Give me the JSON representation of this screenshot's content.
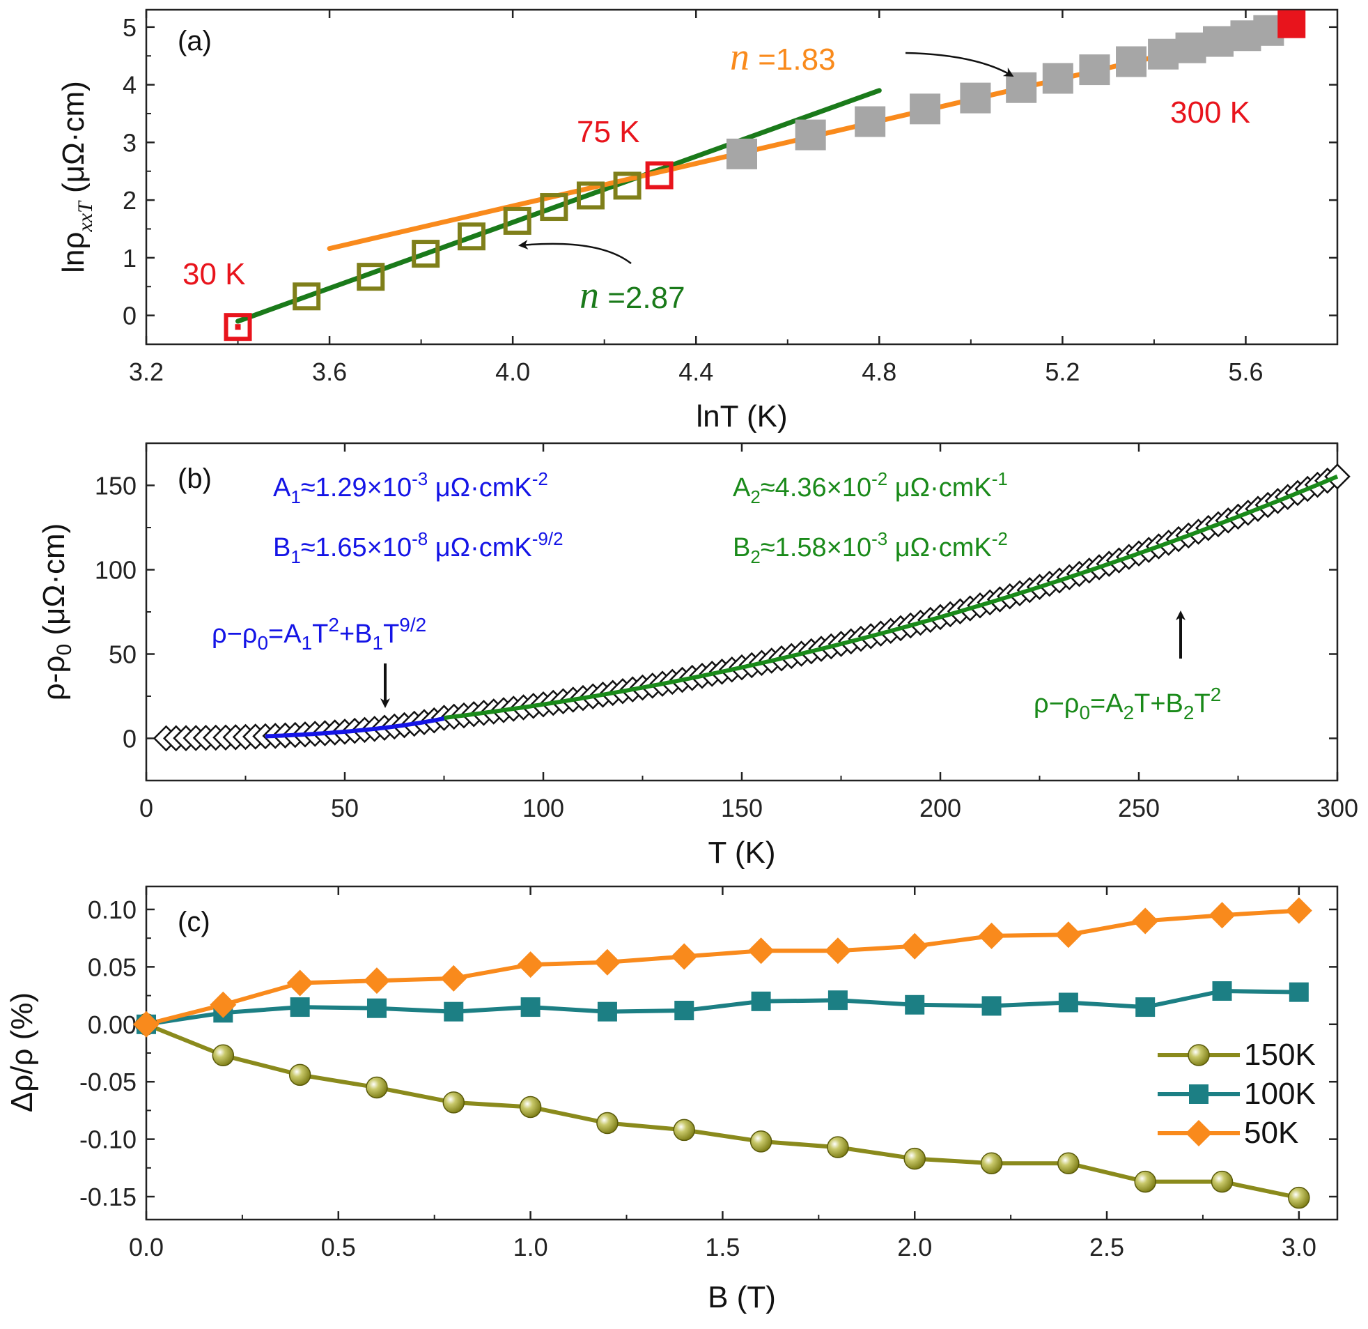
{
  "chart_data": [
    {
      "type": "scatter",
      "panel_label": "(a)",
      "xlabel": "lnT (K)",
      "ylabel": "lnρ",
      "ylabel_sub": "xxT",
      "ylabel_unit": " (μΩ·cm)",
      "xlim": [
        3.2,
        5.8
      ],
      "ylim": [
        -0.5,
        5.3
      ],
      "xticks": [
        "3.2",
        "3.6",
        "4.0",
        "4.4",
        "4.8",
        "5.2",
        "5.6"
      ],
      "xtick_values": [
        3.2,
        3.6,
        4.0,
        4.4,
        4.8,
        5.2,
        5.6
      ],
      "yticks": [
        "0",
        "1",
        "2",
        "3",
        "4",
        "5"
      ],
      "ytick_values": [
        0,
        1,
        2,
        3,
        4,
        5
      ],
      "series": [
        {
          "name": "low T (open squares)",
          "color": "#7f7f1a",
          "x": [
            3.55,
            3.69,
            3.81,
            3.91,
            4.01,
            4.09,
            4.17,
            4.25
          ],
          "y": [
            0.33,
            0.67,
            1.07,
            1.37,
            1.64,
            1.88,
            2.08,
            2.25
          ]
        },
        {
          "name": "high T (filled squares)",
          "color": "#a6a6a6",
          "x": [
            4.5,
            4.65,
            4.78,
            4.9,
            5.01,
            5.11,
            5.19,
            5.27,
            5.35,
            5.42,
            5.48,
            5.54,
            5.6,
            5.65
          ],
          "y": [
            2.8,
            3.13,
            3.36,
            3.58,
            3.77,
            3.95,
            4.11,
            4.26,
            4.4,
            4.53,
            4.64,
            4.75,
            4.85,
            4.94
          ]
        },
        {
          "name": "30 K point",
          "color": "#e8141c",
          "x": [
            3.4
          ],
          "y": [
            -0.2
          ]
        },
        {
          "name": "75 K point",
          "color": "#e8141c",
          "x": [
            4.32
          ],
          "y": [
            2.43
          ]
        },
        {
          "name": "300 K point",
          "color": "#e8141c",
          "x": [
            5.7
          ],
          "y": [
            5.05
          ]
        }
      ],
      "fits": [
        {
          "name": "n=2.87 fit",
          "color": "#1a7a1a",
          "x": [
            3.4,
            4.8
          ],
          "y": [
            -0.1,
            3.9
          ]
        },
        {
          "name": "n=1.83 fit",
          "color": "#f98a1c",
          "x": [
            3.6,
            5.7
          ],
          "y": [
            1.16,
            5.03
          ]
        }
      ],
      "annotations": {
        "label_30K": "30 K",
        "label_75K": "75 K",
        "label_300K": "300 K",
        "n_symbol": "n",
        "n_high": " =1.83",
        "n_low": " =2.87"
      }
    },
    {
      "type": "scatter",
      "panel_label": "(b)",
      "xlabel": "T (K)",
      "ylabel": "ρ-ρ",
      "ylabel_sub": "0",
      "ylabel_unit": " (μΩ·cm)",
      "xlim": [
        0,
        300
      ],
      "ylim": [
        -25,
        175
      ],
      "xticks": [
        "0",
        "50",
        "100",
        "150",
        "200",
        "250",
        "300"
      ],
      "xtick_values": [
        0,
        50,
        100,
        150,
        200,
        250,
        300
      ],
      "yticks": [
        "0",
        "50",
        "100",
        "150"
      ],
      "ytick_values": [
        0,
        50,
        100,
        150
      ],
      "series": [
        {
          "name": "data (open diamonds)",
          "color": "#111111",
          "model": "A2*T+B2*T^2 below 75K: A1*T^2+B1*T^4.5",
          "t_start": 5,
          "t_end": 300,
          "t_step": 2.5
        }
      ],
      "fits": [
        {
          "name": "low-T fit",
          "color": "#1414e6",
          "t_range": [
            30,
            75
          ]
        },
        {
          "name": "high-T fit",
          "color": "#1a8a1a",
          "t_range": [
            75,
            300
          ]
        }
      ],
      "params": {
        "A1": 0.00129,
        "B1": 1.65e-08,
        "A2": 0.0436,
        "B2": 0.00158
      },
      "annotations": {
        "A1_text": "A",
        "A1_sub": "1",
        "A1_val": "≈1.29×10",
        "A1_exp": "-3",
        "A1_unit": " μΩ·cmK",
        "A1_unit_exp": "-2",
        "B1_text": "B",
        "B1_sub": "1",
        "B1_val": "≈1.65×10",
        "B1_exp": "-8",
        "B1_unit": " μΩ·cmK",
        "B1_unit_exp": "-9/2",
        "A2_text": "A",
        "A2_sub": "2",
        "A2_val": "≈4.36×10",
        "A2_exp": "-2",
        "A2_unit": " μΩ·cmK",
        "A2_unit_exp": "-1",
        "B2_text": "B",
        "B2_sub": "2",
        "B2_val": "≈1.58×10",
        "B2_exp": "-3",
        "B2_unit": " μΩ·cmK",
        "B2_unit_exp": "-2",
        "eq_low_1": "ρ−ρ",
        "eq_low_sub0": "0",
        "eq_low_2": "=A",
        "eq_low_sub1": "1",
        "eq_low_3": "T",
        "eq_low_exp2": "2",
        "eq_low_4": "+B",
        "eq_low_sub2": "1",
        "eq_low_5": "T",
        "eq_low_exp92": "9/2",
        "eq_high_1": "ρ−ρ",
        "eq_high_sub0": "0",
        "eq_high_2": "=A",
        "eq_high_sub1": "2",
        "eq_high_3": "T+B",
        "eq_high_sub2": "2",
        "eq_high_4": "T",
        "eq_high_exp2": "2"
      }
    },
    {
      "type": "line",
      "panel_label": "(c)",
      "xlabel": "B (T)",
      "ylabel": "Δρ/ρ (%)",
      "xlim": [
        0,
        3.1
      ],
      "ylim": [
        -0.17,
        0.12
      ],
      "xticks": [
        "0.0",
        "0.5",
        "1.0",
        "1.5",
        "2.0",
        "2.5",
        "3.0"
      ],
      "xtick_values": [
        0,
        0.5,
        1.0,
        1.5,
        2.0,
        2.5,
        3.0
      ],
      "yticks": [
        "-0.15",
        "-0.10",
        "-0.05",
        "0.00",
        "0.05",
        "0.10"
      ],
      "ytick_values": [
        -0.15,
        -0.1,
        -0.05,
        0.0,
        0.05,
        0.1
      ],
      "x": [
        0.0,
        0.2,
        0.4,
        0.6,
        0.8,
        1.0,
        1.2,
        1.4,
        1.6,
        1.8,
        2.0,
        2.2,
        2.4,
        2.6,
        2.8,
        3.0
      ],
      "series": [
        {
          "name": "150K",
          "color": "#8a8a1c",
          "marker": "circle",
          "values": [
            0.0,
            -0.027,
            -0.044,
            -0.055,
            -0.068,
            -0.072,
            -0.086,
            -0.092,
            -0.102,
            -0.107,
            -0.117,
            -0.121,
            -0.121,
            -0.137,
            -0.137,
            -0.151
          ]
        },
        {
          "name": "100K",
          "color": "#1c7f84",
          "marker": "square",
          "values": [
            0.0,
            0.01,
            0.015,
            0.014,
            0.011,
            0.015,
            0.011,
            0.012,
            0.02,
            0.021,
            0.017,
            0.016,
            0.019,
            0.015,
            0.029,
            0.028
          ]
        },
        {
          "name": "50K",
          "color": "#f98a1c",
          "marker": "diamond",
          "values": [
            0.0,
            0.017,
            0.036,
            0.038,
            0.04,
            0.052,
            0.054,
            0.059,
            0.064,
            0.064,
            0.068,
            0.077,
            0.078,
            0.09,
            0.095,
            0.099
          ]
        }
      ],
      "legend_position": "bottom-right"
    }
  ]
}
